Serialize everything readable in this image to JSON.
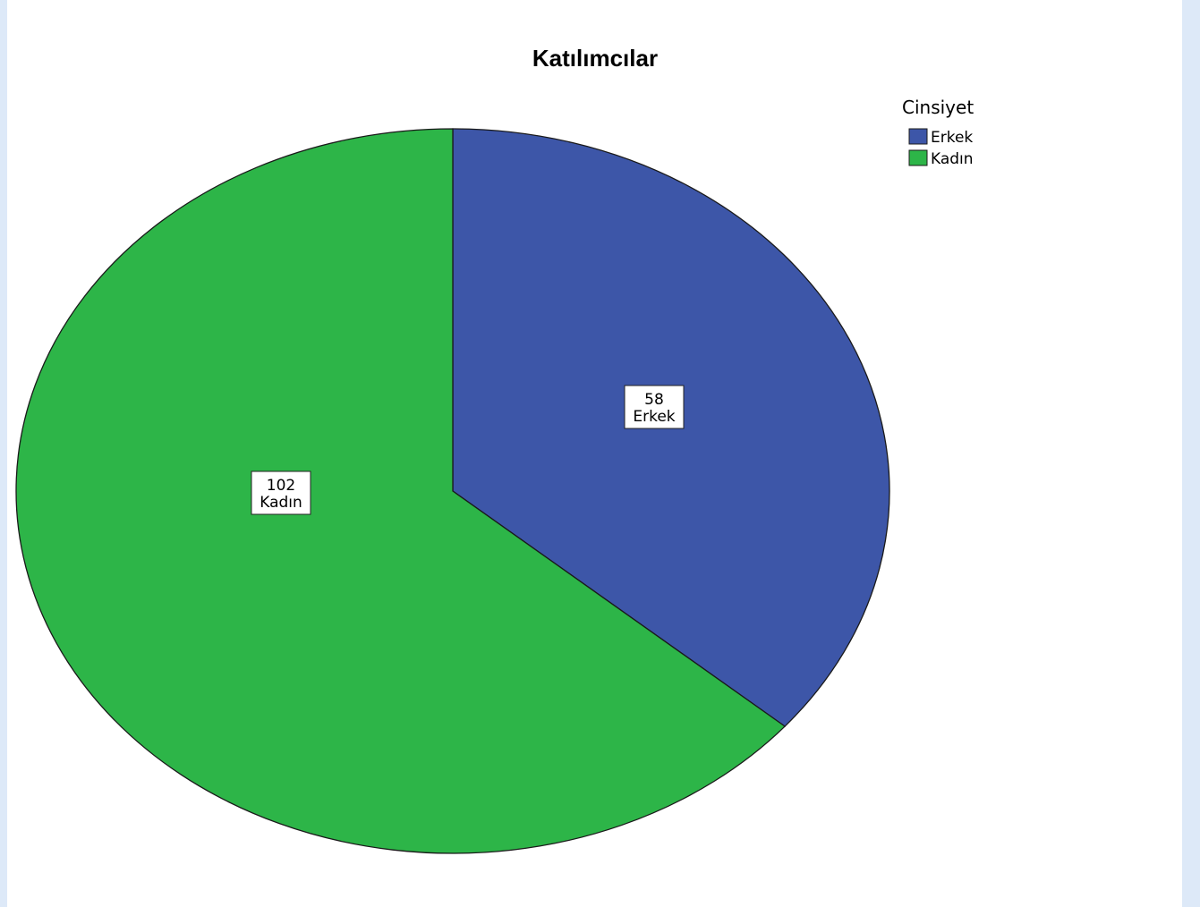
{
  "chart_data": {
    "type": "pie",
    "title": "Katılımcılar",
    "legend": {
      "title": "Cinsiyet",
      "placement": "top-right"
    },
    "slices": [
      {
        "label": "Erkek",
        "value": 58,
        "color": "#3d56a8"
      },
      {
        "label": "Kadın",
        "value": 102,
        "color": "#2db548"
      }
    ],
    "start_angle": "12 o'clock",
    "direction": "clockwise"
  }
}
